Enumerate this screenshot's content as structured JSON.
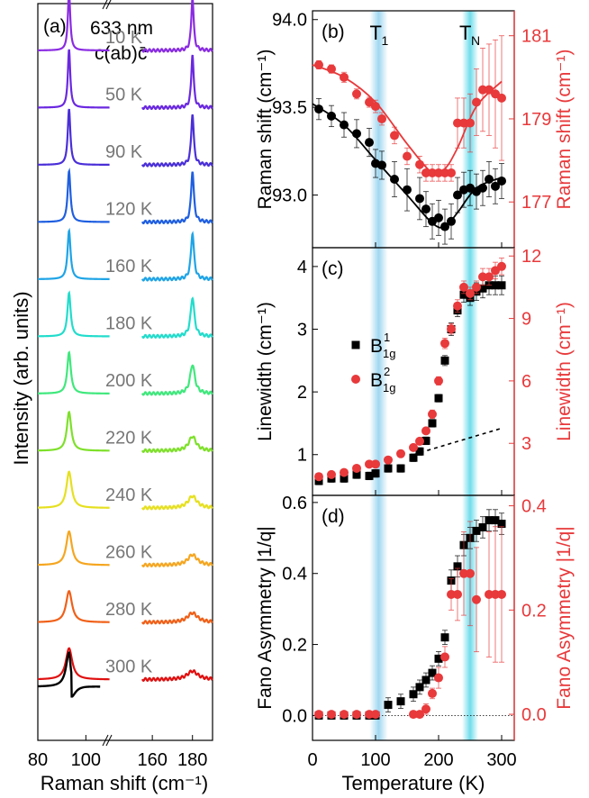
{
  "colors": {
    "black": "#000000",
    "red": "#e8393b",
    "band": "#8fd0ee"
  },
  "chart_data": [
    {
      "type": "line",
      "panel_label": "(a)",
      "title": "633 nm",
      "subtitle": "c(ab)c̄",
      "xlabel": "Raman shift (cm⁻¹)",
      "ylabel": "Intensity (arb. units)",
      "x_ticks": [
        "80",
        "100",
        "160",
        "180"
      ],
      "x_break": true,
      "x_ranges": [
        [
          80,
          110
        ],
        [
          155,
          190
        ]
      ],
      "peak_positions": [
        93,
        180
      ],
      "series": [
        {
          "name": "10 K",
          "color": "#8a2be2",
          "peak1": 1.0,
          "peak2": 1.0,
          "width1": 0.6,
          "width2": 0.7
        },
        {
          "name": "50 K",
          "color": "#6a28e0",
          "peak1": 1.0,
          "peak2": 1.0,
          "width1": 0.6,
          "width2": 0.7
        },
        {
          "name": "90 K",
          "color": "#4a2fd8",
          "peak1": 0.95,
          "peak2": 0.95,
          "width1": 0.65,
          "width2": 0.75
        },
        {
          "name": "120 K",
          "color": "#1f5fe0",
          "peak1": 0.85,
          "peak2": 0.95,
          "width1": 0.7,
          "width2": 0.8
        },
        {
          "name": "160 K",
          "color": "#1ea4e6",
          "peak1": 0.8,
          "peak2": 0.85,
          "width1": 0.75,
          "width2": 0.9
        },
        {
          "name": "180 K",
          "color": "#22dccc",
          "peak1": 0.7,
          "peak2": 0.7,
          "width1": 0.8,
          "width2": 1.1
        },
        {
          "name": "200 K",
          "color": "#3fe87c",
          "peak1": 0.65,
          "peak2": 0.5,
          "width1": 0.9,
          "width2": 1.4
        },
        {
          "name": "220 K",
          "color": "#7ee02a",
          "peak1": 0.6,
          "peak2": 0.2,
          "width1": 1.1,
          "width2": 2.2
        },
        {
          "name": "240 K",
          "color": "#e6e020",
          "peak1": 0.55,
          "peak2": 0.15,
          "width1": 1.3,
          "width2": 2.6
        },
        {
          "name": "260 K",
          "color": "#f5a620",
          "peak1": 0.5,
          "peak2": 0.12,
          "width1": 1.4,
          "width2": 2.8
        },
        {
          "name": "280 K",
          "color": "#f06018",
          "peak1": 0.45,
          "peak2": 0.1,
          "width1": 1.5,
          "width2": 3.0
        },
        {
          "name": "300 K",
          "color": "#e01010",
          "peak1": 0.45,
          "peak2": 0.08,
          "width1": 1.6,
          "width2": 3.2
        }
      ],
      "fit_series_color": "#000000"
    },
    {
      "type": "scatter",
      "panel_label": "(b)",
      "xlabel": "",
      "ylabel_left": "Raman shift (cm⁻¹)",
      "ylabel_right": "Raman shift (cm⁻¹)",
      "xlim": [
        0,
        320
      ],
      "ylim_left": [
        92.7,
        94.05
      ],
      "ylim_right": [
        175.9,
        181.6
      ],
      "yticks_left": [
        "93.0",
        "93.5",
        "94.0"
      ],
      "yticks_right": [
        "177",
        "179",
        "181"
      ],
      "markers": [
        {
          "label": "T₁",
          "x": 105
        },
        {
          "label": "T_N",
          "x": 250
        }
      ],
      "series": [
        {
          "name": "",
          "axis": "left",
          "color": "#000000",
          "marker": "circle",
          "x": [
            10,
            30,
            50,
            70,
            90,
            100,
            110,
            130,
            150,
            170,
            180,
            190,
            200,
            210,
            220,
            230,
            240,
            250,
            260,
            270,
            280,
            290,
            300
          ],
          "y": [
            93.49,
            93.45,
            93.4,
            93.35,
            93.3,
            93.18,
            93.17,
            93.09,
            93.03,
            92.98,
            92.92,
            92.85,
            92.87,
            92.82,
            92.85,
            93.0,
            93.03,
            93.04,
            93.02,
            93.04,
            93.09,
            93.05,
            93.08
          ],
          "err": [
            0.06,
            0.06,
            0.07,
            0.08,
            0.08,
            0.08,
            0.08,
            0.1,
            0.12,
            0.12,
            0.1,
            0.1,
            0.1,
            0.1,
            0.1,
            0.1,
            0.1,
            0.1,
            0.1,
            0.1,
            0.1,
            0.1,
            0.1
          ],
          "fit": {
            "x": [
              0,
              50,
              100,
              150,
              190,
              210,
              230,
              260,
              300
            ],
            "y": [
              93.52,
              93.4,
              93.2,
              93.0,
              92.84,
              92.82,
              92.9,
              93.04,
              93.1
            ]
          }
        },
        {
          "name": "",
          "axis": "right",
          "color": "#e8393b",
          "marker": "circle",
          "x": [
            10,
            30,
            50,
            70,
            90,
            100,
            110,
            130,
            150,
            170,
            180,
            190,
            200,
            210,
            220,
            230,
            240,
            250,
            260,
            270,
            280,
            290,
            300
          ],
          "y": [
            180.3,
            180.2,
            180.0,
            179.6,
            179.4,
            179.3,
            179.0,
            178.6,
            178.1,
            177.9,
            177.7,
            177.7,
            177.7,
            177.7,
            177.7,
            178.9,
            178.9,
            178.9,
            179.4,
            179.7,
            179.7,
            179.6,
            179.5
          ],
          "err": [
            0.1,
            0.1,
            0.12,
            0.12,
            0.12,
            0.15,
            0.15,
            0.2,
            0.2,
            0.2,
            0.2,
            0.2,
            0.2,
            0.2,
            0.2,
            0.6,
            0.6,
            0.7,
            0.8,
            1.0,
            1.1,
            1.3,
            1.5
          ],
          "fit": {
            "x": [
              0,
              50,
              100,
              150,
              190,
              210,
              230,
              260,
              300
            ],
            "y": [
              180.3,
              180.0,
              179.4,
              178.4,
              177.7,
              177.8,
              178.3,
              179.3,
              179.9
            ]
          }
        }
      ]
    },
    {
      "type": "scatter",
      "panel_label": "(c)",
      "xlabel": "",
      "ylabel_left": "Linewidth (cm⁻¹)",
      "ylabel_right": "Linewidth (cm⁻¹)",
      "xlim": [
        0,
        320
      ],
      "ylim_left": [
        0.35,
        4.3
      ],
      "ylim_right": [
        0.5,
        12.4
      ],
      "yticks_left": [
        "1",
        "2",
        "3",
        "4"
      ],
      "yticks_right": [
        "3",
        "6",
        "9",
        "12"
      ],
      "legend_position": "center-left",
      "legend_entries": [
        "B¹₁g",
        "B²₁g"
      ],
      "series": [
        {
          "name": "B¹₁g",
          "axis": "left",
          "color": "#000000",
          "marker": "square",
          "x": [
            10,
            30,
            50,
            70,
            90,
            100,
            120,
            140,
            160,
            170,
            180,
            190,
            200,
            210,
            220,
            230,
            240,
            250,
            260,
            270,
            280,
            290,
            300
          ],
          "y": [
            0.58,
            0.62,
            0.62,
            0.68,
            0.66,
            0.7,
            0.78,
            0.78,
            0.95,
            1.05,
            1.22,
            1.5,
            1.9,
            2.5,
            3.0,
            3.3,
            3.55,
            3.5,
            3.6,
            3.65,
            3.7,
            3.7,
            3.7
          ],
          "err": [
            0.06,
            0.06,
            0.06,
            0.06,
            0.06,
            0.06,
            0.06,
            0.06,
            0.06,
            0.06,
            0.06,
            0.06,
            0.06,
            0.08,
            0.1,
            0.1,
            0.12,
            0.12,
            0.14,
            0.15,
            0.15,
            0.15,
            0.15
          ]
        },
        {
          "name": "B²₁g",
          "axis": "right",
          "color": "#e8393b",
          "marker": "circle",
          "x": [
            10,
            30,
            50,
            70,
            90,
            100,
            120,
            140,
            160,
            170,
            180,
            190,
            200,
            210,
            220,
            230,
            240,
            250,
            260,
            270,
            280,
            290,
            300
          ],
          "y": [
            1.4,
            1.5,
            1.6,
            1.8,
            2.0,
            2.0,
            2.2,
            2.5,
            2.8,
            3.1,
            3.6,
            4.4,
            6.0,
            7.8,
            8.5,
            9.6,
            10.5,
            10.2,
            10.5,
            11.0,
            11.0,
            11.3,
            11.5
          ],
          "err": [
            0.1,
            0.1,
            0.1,
            0.1,
            0.1,
            0.1,
            0.1,
            0.1,
            0.1,
            0.12,
            0.15,
            0.2,
            0.2,
            0.25,
            0.25,
            0.3,
            0.3,
            0.3,
            0.3,
            0.4,
            0.4,
            0.4,
            0.4
          ]
        }
      ],
      "dashed_line": {
        "x": [
          160,
          300
        ],
        "y": [
          1.0,
          1.42
        ]
      }
    },
    {
      "type": "scatter",
      "panel_label": "(d)",
      "xlabel": "Temperature (K)",
      "ylabel_left": "Fano Asymmetry |1/q|",
      "ylabel_right": "Fano Asymmetry |1/q|",
      "xlim": [
        0,
        320
      ],
      "ylim_left": [
        -0.07,
        0.62
      ],
      "ylim_right": [
        -0.05,
        0.42
      ],
      "xticks": [
        "0",
        "100",
        "200",
        "300"
      ],
      "yticks_left": [
        "0.0",
        "0.2",
        "0.4",
        "0.6"
      ],
      "yticks_right": [
        "0.0",
        "0.2",
        "0.4"
      ],
      "series": [
        {
          "name": "",
          "axis": "left",
          "color": "#000000",
          "marker": "square",
          "x": [
            10,
            30,
            50,
            70,
            90,
            100,
            120,
            140,
            160,
            170,
            180,
            190,
            200,
            210,
            220,
            230,
            240,
            250,
            260,
            270,
            280,
            290,
            300
          ],
          "y": [
            0.0,
            0.0,
            0.0,
            0.0,
            0.0,
            0.0,
            0.03,
            0.04,
            0.06,
            0.08,
            0.1,
            0.12,
            0.16,
            0.22,
            0.38,
            0.42,
            0.48,
            0.5,
            0.52,
            0.53,
            0.55,
            0.55,
            0.54
          ],
          "err": [
            0.01,
            0.01,
            0.01,
            0.01,
            0.01,
            0.01,
            0.02,
            0.02,
            0.02,
            0.02,
            0.02,
            0.02,
            0.02,
            0.02,
            0.03,
            0.03,
            0.03,
            0.03,
            0.03,
            0.03,
            0.03,
            0.03,
            0.03
          ]
        },
        {
          "name": "",
          "axis": "right",
          "color": "#e8393b",
          "marker": "circle",
          "x": [
            10,
            30,
            50,
            70,
            90,
            100,
            160,
            170,
            180,
            190,
            200,
            210,
            220,
            230,
            240,
            250,
            260,
            280,
            290,
            300
          ],
          "y": [
            0.0,
            0.0,
            0.0,
            0.0,
            0.0,
            0.0,
            0.0,
            0.0,
            0.01,
            0.04,
            0.07,
            0.11,
            0.23,
            0.23,
            0.27,
            0.27,
            0.22,
            0.23,
            0.23,
            0.23
          ],
          "err": [
            0.005,
            0.005,
            0.005,
            0.005,
            0.005,
            0.005,
            0.005,
            0.005,
            0.01,
            0.01,
            0.02,
            0.02,
            0.03,
            0.05,
            0.08,
            0.1,
            0.1,
            0.12,
            0.13,
            0.13
          ]
        }
      ],
      "zero_line": true
    }
  ]
}
